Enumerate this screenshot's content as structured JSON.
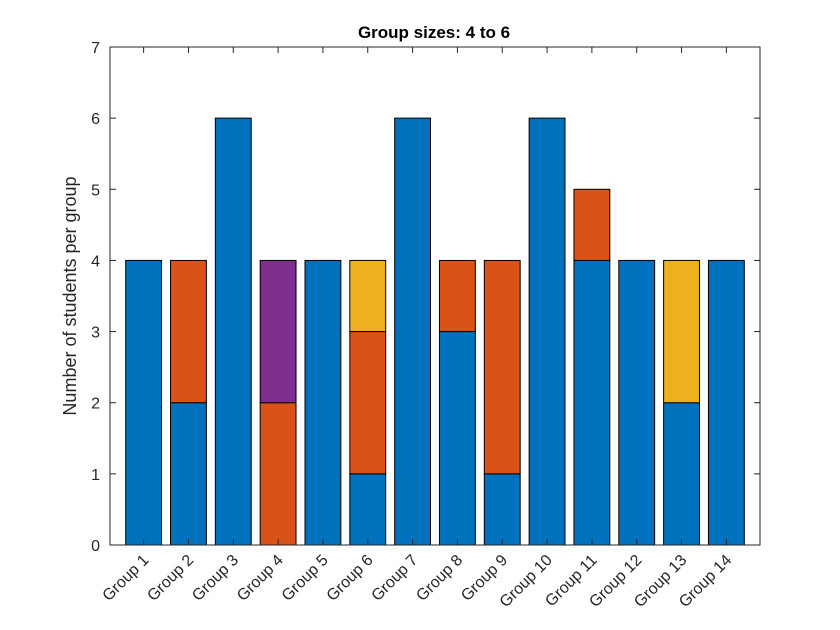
{
  "chart_data": {
    "type": "bar",
    "stacked": true,
    "title": "Group sizes: 4 to 6",
    "xlabel": "",
    "ylabel": "Number of students per group",
    "ylim": [
      0,
      7
    ],
    "yticks": [
      0,
      1,
      2,
      3,
      4,
      5,
      6,
      7
    ],
    "grid": false,
    "categories": [
      "Group 1",
      "Group 2",
      "Group 3",
      "Group 4",
      "Group 5",
      "Group 6",
      "Group 7",
      "Group 8",
      "Group 9",
      "Group 10",
      "Group 11",
      "Group 12",
      "Group 13",
      "Group 14"
    ],
    "series": [
      {
        "color": "#0072BD",
        "values": [
          4,
          2,
          6,
          0,
          4,
          1,
          6,
          3,
          1,
          6,
          4,
          4,
          2,
          4
        ]
      },
      {
        "color": "#D95319",
        "values": [
          0,
          2,
          0,
          2,
          0,
          2,
          0,
          1,
          3,
          0,
          1,
          0,
          0,
          0
        ]
      },
      {
        "color": "#EDB120",
        "values": [
          0,
          0,
          0,
          0,
          0,
          1,
          0,
          0,
          0,
          0,
          0,
          0,
          2,
          0
        ]
      },
      {
        "color": "#7E2F8E",
        "values": [
          0,
          0,
          0,
          2,
          0,
          0,
          0,
          0,
          0,
          0,
          0,
          0,
          0,
          0
        ]
      }
    ]
  }
}
